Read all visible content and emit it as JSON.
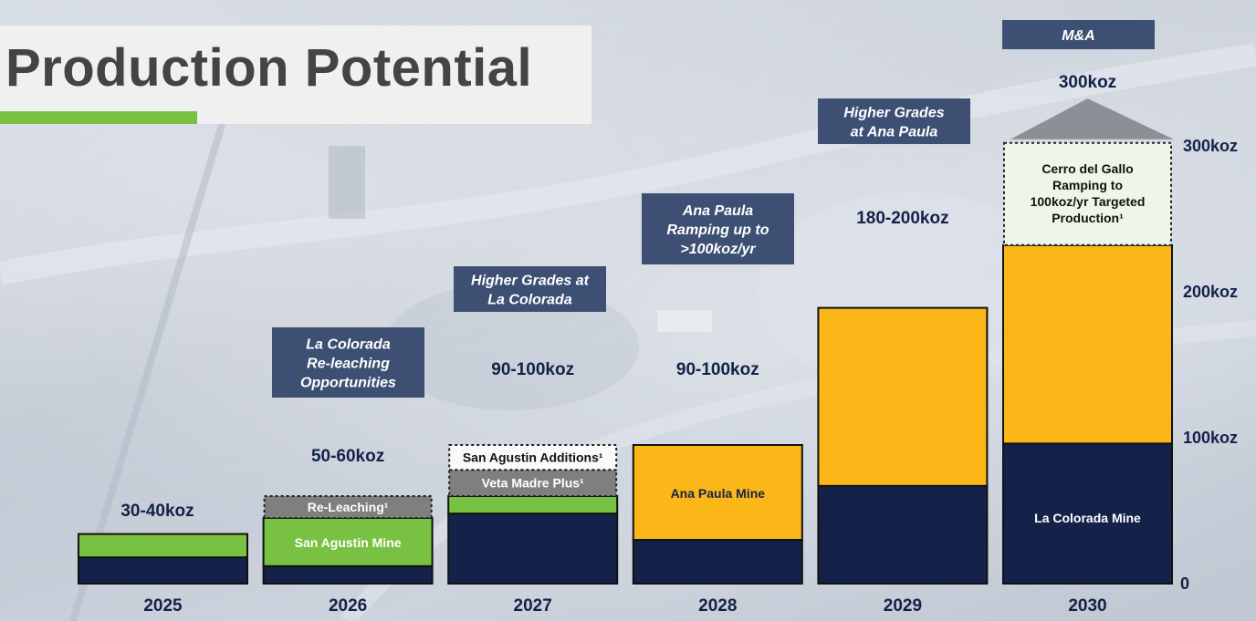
{
  "header": {
    "title": "Production Potential"
  },
  "colors": {
    "navy": "#14224a",
    "green": "#79c143",
    "gray": "#7f7f7f",
    "gold": "#fbb717",
    "cream": "#eef6e8",
    "callout": "#3d4f73",
    "label": "#14224a"
  },
  "chart_data": {
    "type": "bar",
    "stacked": true,
    "categories": [
      "2025",
      "2026",
      "2027",
      "2028",
      "2029",
      "2030"
    ],
    "ylim": [
      0,
      300
    ],
    "yticks": [
      {
        "value": 0,
        "label": "0"
      },
      {
        "value": 100,
        "label": "100koz"
      },
      {
        "value": 200,
        "label": "200koz"
      },
      {
        "value": 300,
        "label": "300koz"
      }
    ],
    "series": [
      {
        "name": "La Colorada Mine",
        "color": "#14224a",
        "values": [
          18,
          12,
          48,
          30,
          67,
          96
        ]
      },
      {
        "name": "San Agustin Mine",
        "color": "#79c143",
        "values": [
          16,
          33,
          12,
          0,
          0,
          0
        ]
      },
      {
        "name": "Ana Paula Mine",
        "color": "#fbb717",
        "values": [
          0,
          0,
          0,
          65,
          122,
          136
        ]
      }
    ],
    "potential": [
      {
        "category": "2026",
        "label": "Re-Leaching¹",
        "from": 45,
        "to": 60,
        "style": "gray"
      },
      {
        "category": "2027",
        "label": "Veta Madre Plus¹",
        "from": 60,
        "to": 78,
        "style": "gray"
      },
      {
        "category": "2027",
        "label": "San Agustin Additions¹",
        "from": 78,
        "to": 95,
        "style": "dotted"
      },
      {
        "category": "2030",
        "label": "Cerro del Gallo Ramping to 100koz/yr Targeted Production¹",
        "from": 232,
        "to": 302,
        "style": "cream"
      },
      {
        "category": "2030",
        "label": "M&A",
        "from": 302,
        "to": 330,
        "style": "arrow"
      }
    ],
    "segment_labels": [
      {
        "category": "2026",
        "text": "San Agustin Mine",
        "at": 28,
        "color": "#ffffff"
      },
      {
        "category": "2028",
        "text": "Ana Paula Mine",
        "at": 62,
        "color": "#14224a"
      },
      {
        "category": "2030",
        "text": "La Colorada Mine",
        "at": 45,
        "color": "#ffffff"
      }
    ],
    "totals": [
      {
        "category": "2025",
        "text": "30-40koz"
      },
      {
        "category": "2026",
        "text": "50-60koz"
      },
      {
        "category": "2027",
        "text": "90-100koz"
      },
      {
        "category": "2028",
        "text": "90-100koz"
      },
      {
        "category": "2029",
        "text": "180-200koz"
      },
      {
        "category": "2030",
        "text": "300koz"
      }
    ],
    "callouts": [
      {
        "category": "2026",
        "lines": [
          "La Colorada",
          "Re-leaching",
          "Opportunities"
        ]
      },
      {
        "category": "2027",
        "lines": [
          "Higher Grades at",
          "La Colorada"
        ]
      },
      {
        "category": "2028",
        "lines": [
          "Ana Paula",
          "Ramping up to",
          ">100koz/yr"
        ]
      },
      {
        "category": "2029",
        "lines": [
          "Higher Grades",
          "at Ana Paula"
        ]
      },
      {
        "category": "2030",
        "lines": [
          "M&A"
        ]
      }
    ]
  }
}
